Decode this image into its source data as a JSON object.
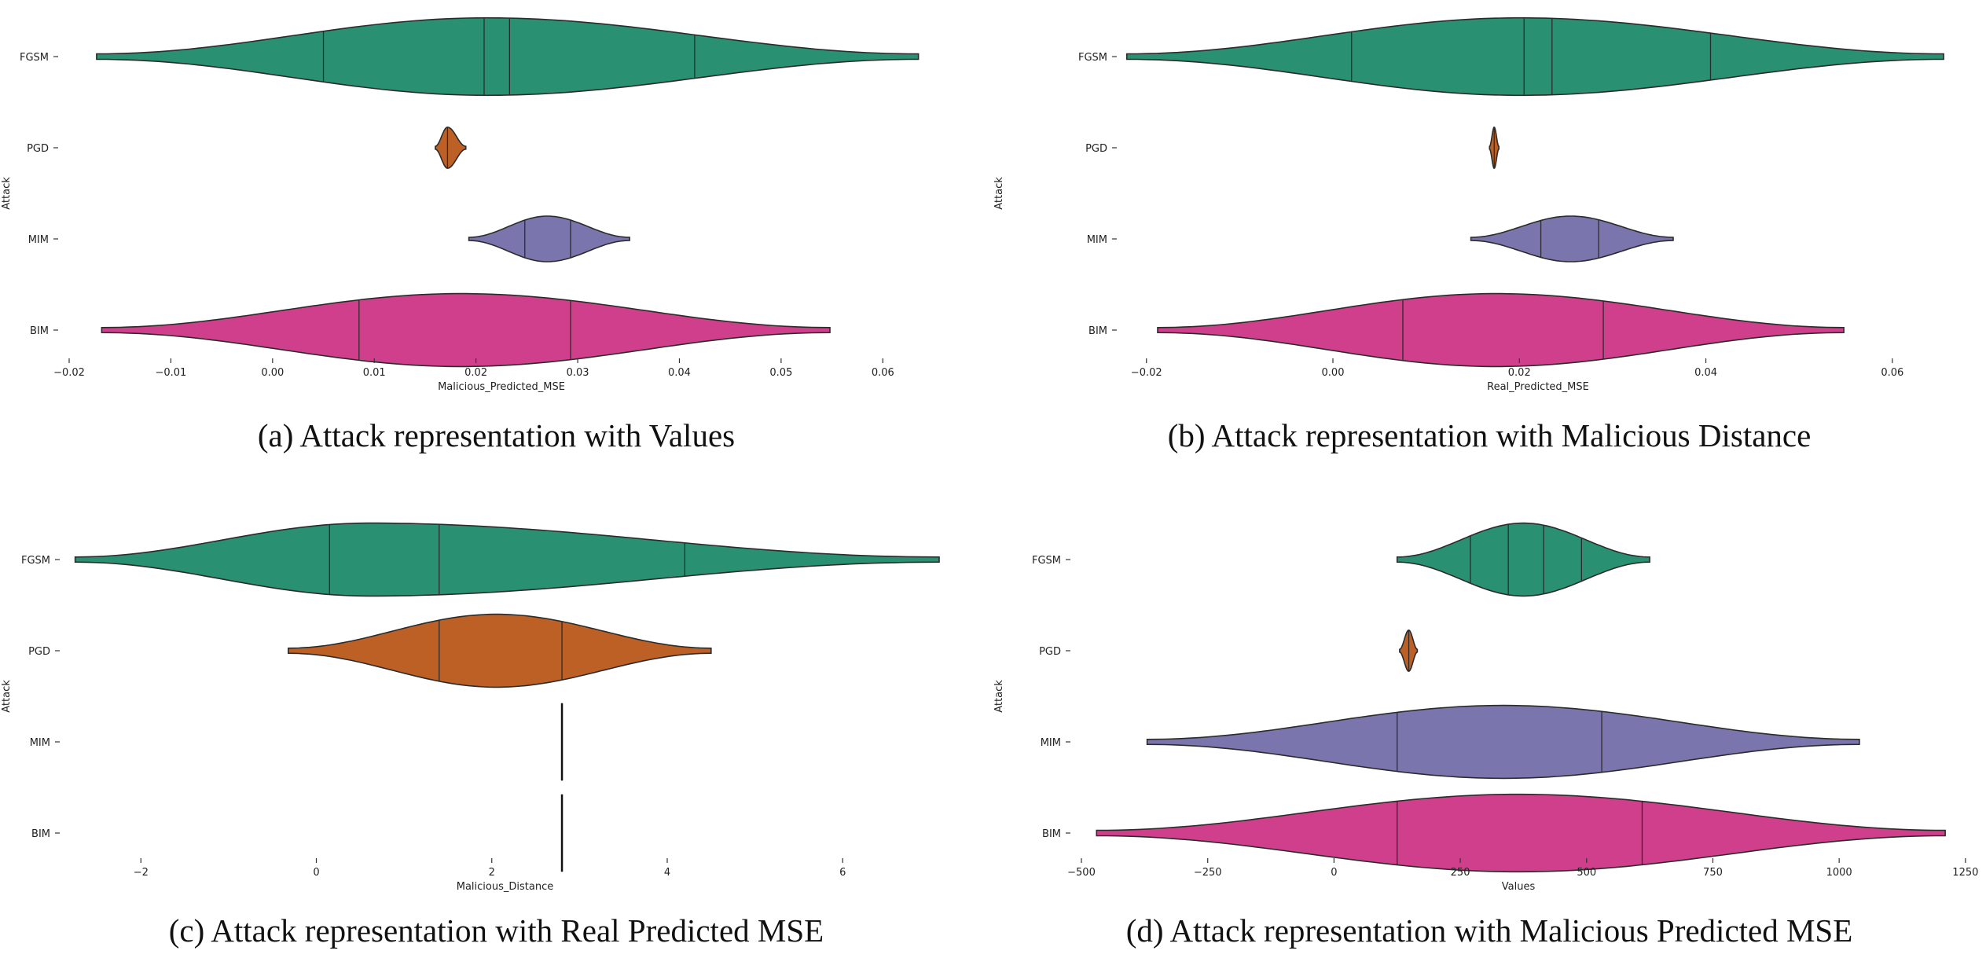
{
  "colors": {
    "FGSM": "#2a9072",
    "PGD": "#bd6026",
    "MIM": "#7b75ad",
    "BIM": "#cf3f8b",
    "outline": "#2b2b2b"
  },
  "chart_data": [
    {
      "type": "violin",
      "caption": "(a) Attack representation with Values",
      "xlabel": "Malicious_Predicted_MSE",
      "ylabel": "Attack",
      "categories": [
        "FGSM",
        "PGD",
        "MIM",
        "BIM"
      ],
      "xlim": [
        -0.02,
        0.065
      ],
      "xticks": [
        -0.02,
        -0.01,
        0.0,
        0.01,
        0.02,
        0.03,
        0.04,
        0.05,
        0.06
      ],
      "xtick_labels": [
        "−0.02",
        "−0.01",
        "0.00",
        "0.01",
        "0.02",
        "0.03",
        "0.04",
        "0.05",
        "0.06"
      ],
      "violins": [
        {
          "name": "FGSM",
          "min": -0.0173,
          "max": 0.0635,
          "mode": 0.021,
          "quartiles": [
            0.005,
            0.0208,
            0.0233,
            0.0415
          ],
          "width": 0.85
        },
        {
          "name": "PGD",
          "min": 0.016,
          "max": 0.019,
          "mode": 0.0172,
          "quartiles": [
            0.0172
          ],
          "width": 0.45
        },
        {
          "name": "MIM",
          "min": 0.0193,
          "max": 0.0351,
          "mode": 0.027,
          "quartiles": [
            0.0248,
            0.0293
          ],
          "width": 0.5
        },
        {
          "name": "BIM",
          "min": -0.0168,
          "max": 0.0548,
          "mode": 0.0185,
          "quartiles": [
            0.0085,
            0.0293
          ],
          "width": 0.8
        }
      ]
    },
    {
      "type": "violin",
      "caption": "(b) Attack representation with Malicious Distance",
      "xlabel": "Real_Predicted_MSE",
      "ylabel": "Attack",
      "categories": [
        "FGSM",
        "PGD",
        "MIM",
        "BIM"
      ],
      "xlim": [
        -0.022,
        0.066
      ],
      "xticks": [
        -0.02,
        0.0,
        0.02,
        0.04,
        0.06
      ],
      "xtick_labels": [
        "−0.02",
        "0.00",
        "0.02",
        "0.04",
        "0.06"
      ],
      "violins": [
        {
          "name": "FGSM",
          "min": -0.0221,
          "max": 0.0655,
          "mode": 0.02,
          "quartiles": [
            0.002,
            0.0205,
            0.0235,
            0.0405
          ],
          "width": 0.85
        },
        {
          "name": "PGD",
          "min": 0.0168,
          "max": 0.0178,
          "mode": 0.0173,
          "quartiles": [
            0.0173
          ],
          "width": 0.45
        },
        {
          "name": "MIM",
          "min": 0.0148,
          "max": 0.0365,
          "mode": 0.0255,
          "quartiles": [
            0.0223,
            0.0285
          ],
          "width": 0.5
        },
        {
          "name": "BIM",
          "min": -0.0188,
          "max": 0.0548,
          "mode": 0.0175,
          "quartiles": [
            0.0075,
            0.029
          ],
          "width": 0.8
        }
      ]
    },
    {
      "type": "violin",
      "caption": "(c) Attack representation with Real Predicted MSE",
      "xlabel": "Malicious_Distance",
      "ylabel": "Attack",
      "categories": [
        "FGSM",
        "PGD",
        "MIM",
        "BIM"
      ],
      "xlim": [
        -2.8,
        7.1
      ],
      "xticks": [
        -2,
        0,
        2,
        4,
        6
      ],
      "xtick_labels": [
        "−2",
        "0",
        "2",
        "4",
        "6"
      ],
      "violins": [
        {
          "name": "FGSM",
          "min": -2.75,
          "max": 7.1,
          "mode": 0.6,
          "quartiles": [
            0.15,
            1.4,
            4.2
          ],
          "width": 0.8
        },
        {
          "name": "PGD",
          "min": -0.32,
          "max": 4.5,
          "mode": 2.05,
          "quartiles": [
            1.4,
            2.8
          ],
          "width": 0.8
        },
        {
          "name": "MIM",
          "min": 2.8,
          "max": 2.8,
          "mode": 2.8,
          "quartiles": [
            2.8
          ],
          "width": 0.85
        },
        {
          "name": "BIM",
          "min": 2.8,
          "max": 2.8,
          "mode": 2.8,
          "quartiles": [
            2.8
          ],
          "width": 0.85
        }
      ]
    },
    {
      "type": "violin",
      "caption": "(d) Attack representation with Malicious Predicted MSE",
      "xlabel": "Values",
      "ylabel": "Attack",
      "categories": [
        "FGSM",
        "PGD",
        "MIM",
        "BIM"
      ],
      "xlim": [
        -500,
        1230
      ],
      "xticks": [
        -500,
        -250,
        0,
        250,
        500,
        750,
        1000,
        1250
      ],
      "xtick_labels": [
        "−500",
        "−250",
        "0",
        "250",
        "500",
        "750",
        "1000",
        "1250"
      ],
      "violins": [
        {
          "name": "FGSM",
          "min": 125,
          "max": 625,
          "mode": 375,
          "quartiles": [
            270,
            345,
            415,
            490
          ],
          "width": 0.8
        },
        {
          "name": "PGD",
          "min": 130,
          "max": 165,
          "mode": 148,
          "quartiles": [
            148
          ],
          "width": 0.45
        },
        {
          "name": "MIM",
          "min": -370,
          "max": 1040,
          "mode": 335,
          "quartiles": [
            125,
            530
          ],
          "width": 0.8
        },
        {
          "name": "BIM",
          "min": -470,
          "max": 1210,
          "mode": 365,
          "quartiles": [
            125,
            610
          ],
          "width": 0.85
        }
      ]
    }
  ]
}
